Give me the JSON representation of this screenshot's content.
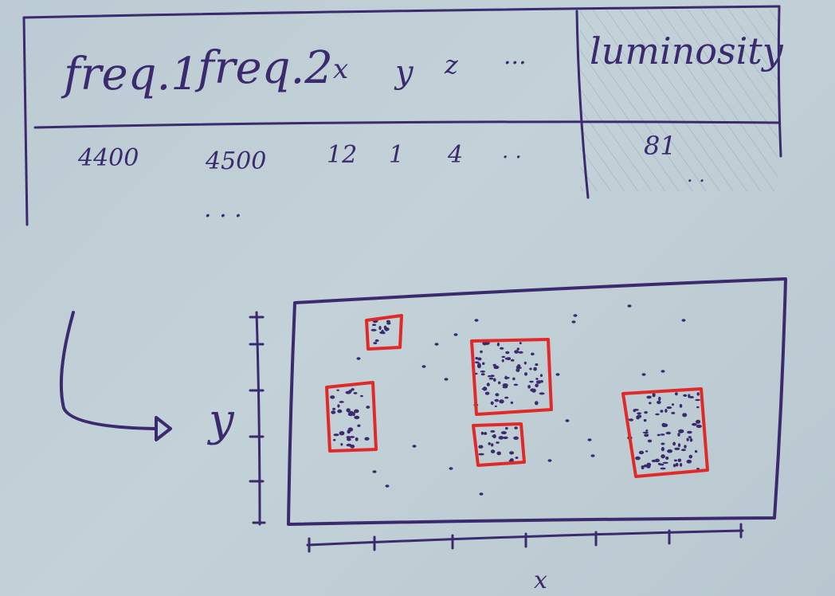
{
  "table": {
    "headers": [
      "freq.1",
      "freq.2",
      "x",
      "y",
      "z",
      "...",
      "luminosity"
    ],
    "row": [
      "4400",
      "4500",
      "12",
      "1",
      "4",
      ". .",
      "81"
    ],
    "row_trailing_dots": ". .",
    "continuation": ". . ."
  },
  "plot": {
    "y_label": "y",
    "x_label": "x",
    "y_ticks": 6,
    "x_ticks": 6
  },
  "colors": {
    "ink": "#3b2a6e",
    "highlight": "#e02a2a",
    "paper": "#c1cfd6"
  }
}
